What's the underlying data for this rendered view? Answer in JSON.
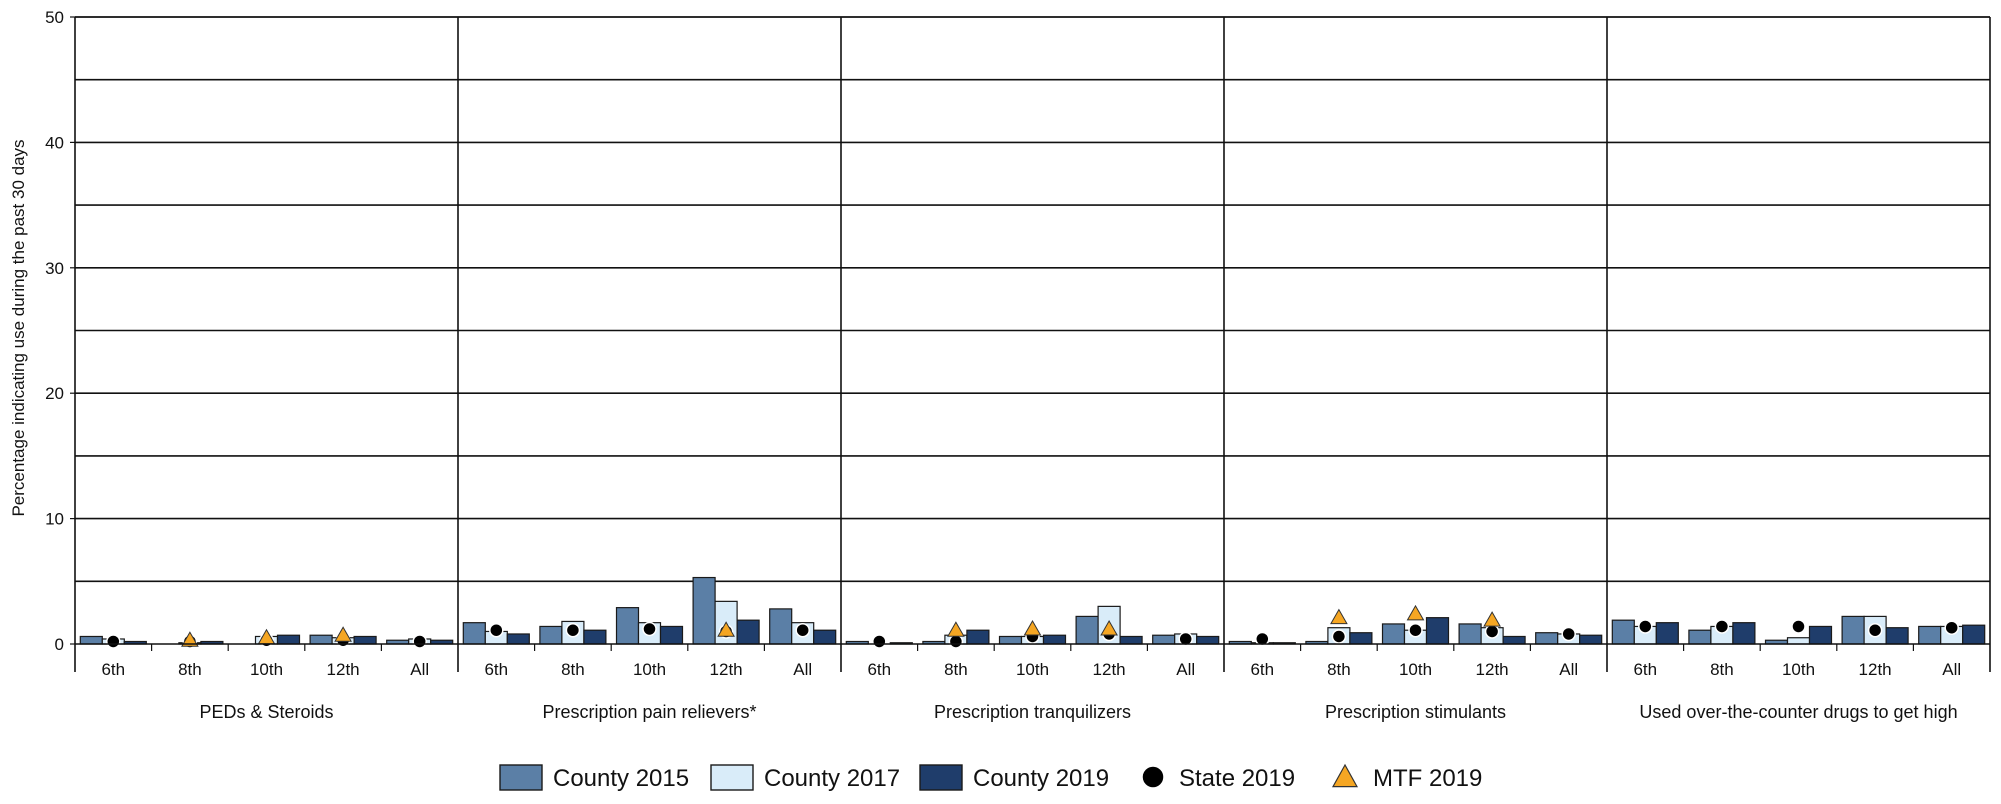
{
  "chart_data": {
    "type": "bar",
    "ylabel": "Percentage indicating use during the past 30 days",
    "ylim": [
      0,
      50
    ],
    "yticks": [
      0,
      10,
      20,
      30,
      40,
      50
    ],
    "grid": true,
    "legend_position": "bottom",
    "grades": [
      "6th",
      "8th",
      "10th",
      "12th",
      "All"
    ],
    "groups": [
      {
        "label": "PEDs & Steroids",
        "county2015": [
          0.6,
          0.0,
          0.0,
          0.7,
          0.3
        ],
        "county2017": [
          0.4,
          0.1,
          0.6,
          0.5,
          0.4
        ],
        "county2019": [
          0.2,
          0.2,
          0.7,
          0.6,
          0.3
        ],
        "state2019": [
          0.2,
          0.2,
          0.3,
          0.3,
          0.2
        ],
        "mtf2019": [
          null,
          0.3,
          0.5,
          0.7,
          null
        ]
      },
      {
        "label": "Prescription pain relievers*",
        "county2015": [
          1.7,
          1.4,
          2.9,
          5.3,
          2.8
        ],
        "county2017": [
          1.0,
          1.8,
          1.7,
          3.4,
          1.7
        ],
        "county2019": [
          0.8,
          1.1,
          1.4,
          1.9,
          1.1
        ],
        "state2019": [
          1.1,
          1.1,
          1.2,
          1.0,
          1.1
        ],
        "mtf2019": [
          null,
          null,
          null,
          1.1,
          null
        ]
      },
      {
        "label": "Prescription tranquilizers",
        "county2015": [
          0.2,
          0.2,
          0.6,
          2.2,
          0.7
        ],
        "county2017": [
          0.0,
          0.7,
          0.6,
          3.0,
          0.8
        ],
        "county2019": [
          0.1,
          1.1,
          0.7,
          0.6,
          0.6
        ],
        "state2019": [
          0.2,
          0.2,
          0.6,
          0.8,
          0.4
        ],
        "mtf2019": [
          null,
          1.1,
          1.2,
          1.2,
          null
        ]
      },
      {
        "label": "Prescription stimulants",
        "county2015": [
          0.2,
          0.2,
          1.6,
          1.6,
          0.9
        ],
        "county2017": [
          0.1,
          1.3,
          1.1,
          1.3,
          0.8
        ],
        "county2019": [
          0.1,
          0.9,
          2.1,
          0.6,
          0.7
        ],
        "state2019": [
          0.4,
          0.6,
          1.1,
          1.0,
          0.8
        ],
        "mtf2019": [
          null,
          2.1,
          2.4,
          1.9,
          null
        ]
      },
      {
        "label": "Used over-the-counter drugs to get high",
        "county2015": [
          1.9,
          1.1,
          0.3,
          2.2,
          1.4
        ],
        "county2017": [
          1.4,
          1.4,
          0.5,
          2.2,
          1.4
        ],
        "county2019": [
          1.7,
          1.7,
          1.4,
          1.3,
          1.5
        ],
        "state2019": [
          1.4,
          1.4,
          1.4,
          1.1,
          1.3
        ],
        "mtf2019": [
          null,
          null,
          null,
          null,
          null
        ]
      }
    ],
    "legend": [
      {
        "key": "county2015",
        "label": "County 2015",
        "kind": "bar",
        "color": "#5b7fa6"
      },
      {
        "key": "county2017",
        "label": "County 2017",
        "kind": "bar",
        "color": "#d9ecf9"
      },
      {
        "key": "county2019",
        "label": "County 2019",
        "kind": "bar",
        "color": "#1f3d6b"
      },
      {
        "key": "state2019",
        "label": "State 2019",
        "kind": "circle",
        "color": "#000000"
      },
      {
        "key": "mtf2019",
        "label": "MTF 2019",
        "kind": "triangle",
        "color": "#f5a623"
      }
    ]
  }
}
